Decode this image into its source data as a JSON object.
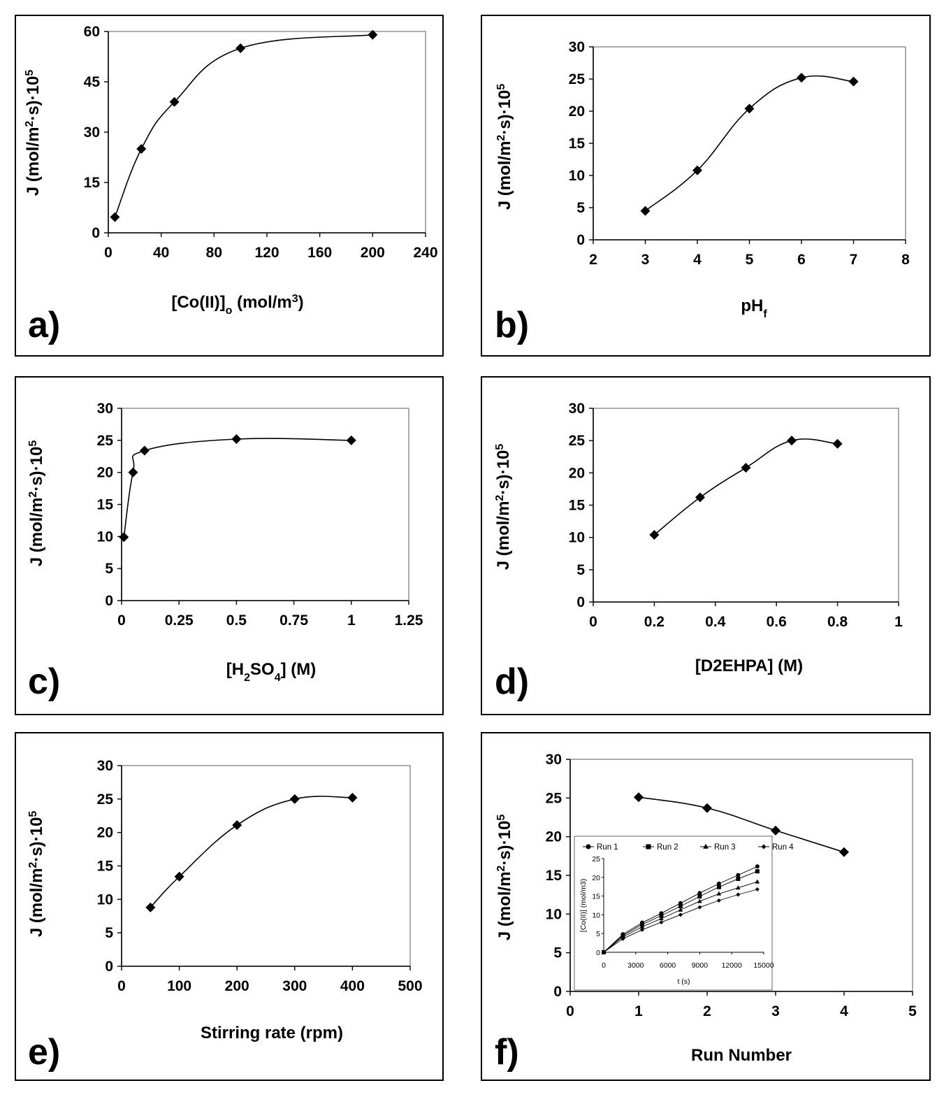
{
  "chart_data": [
    {
      "panel_label": "a)",
      "type": "line",
      "xlabel": "[Co(II)]",
      "xlabel_sub": "o",
      "xlabel_rest": " (mol/m",
      "xlabel_sup": "3",
      "xlabel_end": ")",
      "ylabel": "J (mol/m",
      "ylabel_sup1": "2",
      "ylabel_mid": "·s)·10",
      "ylabel_sup2": "5",
      "xlim": [
        0,
        240
      ],
      "ylim": [
        0,
        60
      ],
      "xticks": [
        0,
        40,
        80,
        120,
        160,
        200,
        240
      ],
      "yticks": [
        0,
        15,
        30,
        45,
        60
      ],
      "xtick_labels": [
        "0",
        "40",
        "80",
        "120",
        "160",
        "200",
        "240"
      ],
      "ytick_labels": [
        "0",
        "15",
        "30",
        "45",
        "60"
      ],
      "x": [
        5,
        25,
        50,
        100,
        200
      ],
      "y": [
        4.7,
        25,
        39,
        55,
        59
      ]
    },
    {
      "panel_label": "b)",
      "type": "line",
      "xlabel": "pH",
      "xlabel_sub": "f",
      "xlabel_rest": "",
      "xlabel_sup": "",
      "xlabel_end": "",
      "ylabel": "J (mol/m",
      "ylabel_sup1": "2",
      "ylabel_mid": "·s)·10",
      "ylabel_sup2": "5",
      "xlim": [
        2,
        8
      ],
      "ylim": [
        0,
        30
      ],
      "xticks": [
        2,
        3,
        4,
        5,
        6,
        7,
        8
      ],
      "yticks": [
        0,
        5,
        10,
        15,
        20,
        25,
        30
      ],
      "xtick_labels": [
        "2",
        "3",
        "4",
        "5",
        "6",
        "7",
        "8"
      ],
      "ytick_labels": [
        "0",
        "5",
        "10",
        "15",
        "20",
        "25",
        "30"
      ],
      "x": [
        3,
        4,
        5,
        6,
        7
      ],
      "y": [
        4.5,
        10.8,
        20.4,
        25.2,
        24.6
      ]
    },
    {
      "panel_label": "c)",
      "type": "line",
      "xlabel": "[H",
      "xlabel_sub": "2",
      "xlabel_rest": "SO",
      "xlabel_sub2": "4",
      "xlabel_end": "] (M)",
      "ylabel": "J (mol/m",
      "ylabel_sup1": "2",
      "ylabel_mid": "·s)·10",
      "ylabel_sup2": "5",
      "xlim": [
        0,
        1.25
      ],
      "ylim": [
        0,
        30
      ],
      "xticks": [
        0,
        0.25,
        0.5,
        0.75,
        1,
        1.25
      ],
      "yticks": [
        0,
        5,
        10,
        15,
        20,
        25,
        30
      ],
      "xtick_labels": [
        "0",
        "0.25",
        "0.5",
        "0.75",
        "1",
        "1.25"
      ],
      "ytick_labels": [
        "0",
        "5",
        "10",
        "15",
        "20",
        "25",
        "30"
      ],
      "x": [
        0.01,
        0.05,
        0.1,
        0.5,
        1
      ],
      "y": [
        9.9,
        20,
        23.4,
        25.2,
        25
      ]
    },
    {
      "panel_label": "d)",
      "type": "line",
      "xlabel": "[D2EHPA] (M)",
      "ylabel": "J (mol/m",
      "ylabel_sup1": "2",
      "ylabel_mid": "·s)·10",
      "ylabel_sup2": "5",
      "xlim": [
        0,
        1
      ],
      "ylim": [
        0,
        30
      ],
      "xticks": [
        0,
        0.2,
        0.4,
        0.6,
        0.8,
        1
      ],
      "yticks": [
        0,
        5,
        10,
        15,
        20,
        25,
        30
      ],
      "xtick_labels": [
        "0",
        "0.2",
        "0.4",
        "0.6",
        "0.8",
        "1"
      ],
      "ytick_labels": [
        "0",
        "5",
        "10",
        "15",
        "20",
        "25",
        "30"
      ],
      "x": [
        0.2,
        0.35,
        0.5,
        0.65,
        0.8
      ],
      "y": [
        10.4,
        16.2,
        20.8,
        25,
        24.5
      ]
    },
    {
      "panel_label": "e)",
      "type": "line",
      "xlabel": "Stirring rate (rpm)",
      "ylabel": "J (mol/m",
      "ylabel_sup1": "2",
      "ylabel_mid": "·s)·10",
      "ylabel_sup2": "5",
      "xlim": [
        0,
        500
      ],
      "ylim": [
        0,
        30
      ],
      "xticks": [
        0,
        100,
        200,
        300,
        400,
        500
      ],
      "yticks": [
        0,
        5,
        10,
        15,
        20,
        25,
        30
      ],
      "xtick_labels": [
        "0",
        "100",
        "200",
        "300",
        "400",
        "500"
      ],
      "ytick_labels": [
        "0",
        "5",
        "10",
        "15",
        "20",
        "25",
        "30"
      ],
      "x": [
        50,
        100,
        200,
        300,
        400
      ],
      "y": [
        8.8,
        13.4,
        21.1,
        25,
        25.2
      ]
    },
    {
      "panel_label": "f)",
      "type": "line",
      "xlabel": "Run Number",
      "ylabel": "J (mol/m",
      "ylabel_sup1": "2",
      "ylabel_mid": "·s)·10",
      "ylabel_sup2": "5",
      "xlim": [
        0,
        5
      ],
      "ylim": [
        0,
        30
      ],
      "xticks": [
        0,
        1,
        2,
        3,
        4,
        5
      ],
      "yticks": [
        0,
        5,
        10,
        15,
        20,
        25,
        30
      ],
      "xtick_labels": [
        "0",
        "1",
        "2",
        "3",
        "4",
        "5"
      ],
      "ytick_labels": [
        "0",
        "5",
        "10",
        "15",
        "20",
        "25",
        "30"
      ],
      "x": [
        1,
        2,
        3,
        4
      ],
      "y": [
        25.1,
        23.7,
        20.8,
        18
      ],
      "inset": {
        "type": "line",
        "xlabel": "t (s)",
        "ylabel": "[Co(II)] (mol/m3)",
        "xlim": [
          0,
          15000
        ],
        "ylim": [
          0,
          25
        ],
        "xticks": [
          0,
          3000,
          6000,
          9000,
          12000,
          15000
        ],
        "yticks": [
          0,
          5,
          10,
          15,
          20,
          25
        ],
        "xtick_labels": [
          "0",
          "3000",
          "6000",
          "9000",
          "12000",
          "15000"
        ],
        "ytick_labels": [
          "0",
          "5",
          "10",
          "15",
          "20",
          "25"
        ],
        "x": [
          0,
          1800,
          3600,
          5400,
          7200,
          9000,
          10800,
          12600,
          14400
        ],
        "series": [
          {
            "name": "Run 1",
            "marker": "circle",
            "values": [
              0,
              4.8,
              7.9,
              10.4,
              13.1,
              15.8,
              18.3,
              20.6,
              22.9
            ]
          },
          {
            "name": "Run 2",
            "marker": "square",
            "values": [
              0,
              4.5,
              7.4,
              9.8,
              12.3,
              14.9,
              17.4,
              19.6,
              21.6
            ]
          },
          {
            "name": "Run 3",
            "marker": "triangle",
            "values": [
              0,
              4.1,
              6.8,
              9.0,
              11.3,
              13.6,
              15.6,
              17.2,
              18.8
            ]
          },
          {
            "name": "Run 4",
            "marker": "diamond",
            "values": [
              0,
              3.6,
              6.0,
              8.0,
              10.0,
              12.0,
              13.8,
              15.4,
              16.8
            ]
          }
        ]
      }
    }
  ]
}
